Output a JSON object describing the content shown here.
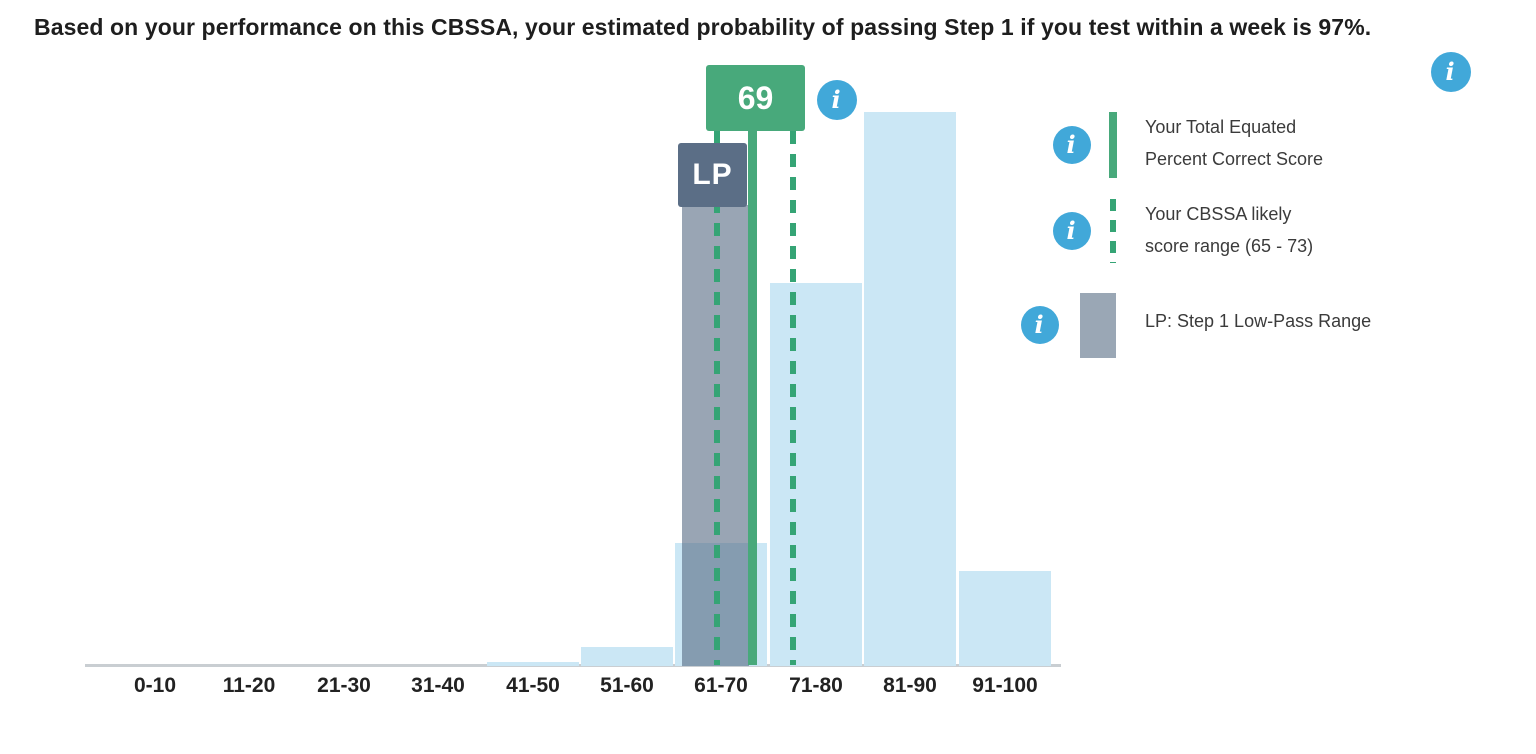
{
  "title": "Based on your performance on this CBSSA, your estimated probability of passing Step 1 if you test within a week is 97%.",
  "markers": {
    "score_label": "69",
    "lp_label": "LP"
  },
  "legend": {
    "items": [
      {
        "line1": "Your Total Equated",
        "line2": "Percent Correct Score"
      },
      {
        "line1": "Your CBSSA likely",
        "line2": "score range (65 - 73)"
      },
      {
        "line1": "LP: Step 1 Low-Pass Range",
        "line2": ""
      }
    ]
  },
  "icons": {
    "info_glyph": "i"
  },
  "colors": {
    "bar_blue": "#cbe7f5",
    "marker_green": "#48a97b",
    "dash_green": "#35a475",
    "lp_slate": "#5b6e86",
    "lp_band": "#9aa7b5",
    "info_blue": "#41a8d9",
    "axis_gray": "#c9ced2"
  },
  "chart_data": {
    "type": "bar",
    "title": "Based on your performance on this CBSSA, your estimated probability of passing Step 1 if you test within a week is 97%.",
    "categories": [
      "0-10",
      "11-20",
      "21-30",
      "31-40",
      "41-50",
      "51-60",
      "61-70",
      "71-80",
      "81-90",
      "91-100"
    ],
    "values": [
      0,
      0,
      0,
      0,
      0.3,
      1.6,
      10.4,
      32.5,
      47,
      8.1
    ],
    "values_unit": "percent of examinees (estimated from bar heights; no numeric labels shown)",
    "xlabel": "",
    "ylabel": "",
    "ylim": [
      0,
      50
    ],
    "grid": false,
    "legend_position": "right",
    "annotations": {
      "total_equated_percent_correct_score": 69,
      "likely_score_range": [
        65,
        73
      ],
      "lp_band_scores_estimated": [
        61,
        68
      ],
      "pass_probability": "97%"
    }
  }
}
